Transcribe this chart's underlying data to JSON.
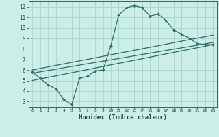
{
  "xlabel": "Humidex (Indice chaleur)",
  "bg_color": "#cceee8",
  "grid_color": "#aad4cc",
  "line_color": "#2a6e62",
  "xlim": [
    -0.5,
    23.5
  ],
  "ylim": [
    2.5,
    12.5
  ],
  "xticks": [
    0,
    1,
    2,
    3,
    4,
    5,
    6,
    7,
    8,
    9,
    10,
    11,
    12,
    13,
    14,
    15,
    16,
    17,
    18,
    19,
    20,
    21,
    22,
    23
  ],
  "yticks": [
    3,
    4,
    5,
    6,
    7,
    8,
    9,
    10,
    11,
    12
  ],
  "main_line_x": [
    0,
    1,
    2,
    3,
    4,
    5,
    6,
    7,
    8,
    9,
    10,
    11,
    12,
    13,
    14,
    15,
    16,
    17,
    18,
    19,
    20,
    21,
    22,
    23
  ],
  "main_line_y": [
    5.8,
    5.2,
    4.6,
    4.2,
    3.2,
    2.7,
    5.2,
    5.4,
    5.9,
    6.0,
    8.3,
    11.2,
    11.9,
    12.1,
    11.9,
    11.1,
    11.3,
    10.7,
    9.8,
    9.4,
    9.0,
    8.5,
    8.4,
    8.4
  ],
  "trend1_x": [
    0,
    23
  ],
  "trend1_y": [
    6.0,
    9.3
  ],
  "trend2_x": [
    0,
    23
  ],
  "trend2_y": [
    5.7,
    8.6
  ],
  "trend3_x": [
    0,
    23
  ],
  "trend3_y": [
    5.0,
    8.4
  ],
  "axis_color": "#336655",
  "tick_label_color": "#1a4a40"
}
